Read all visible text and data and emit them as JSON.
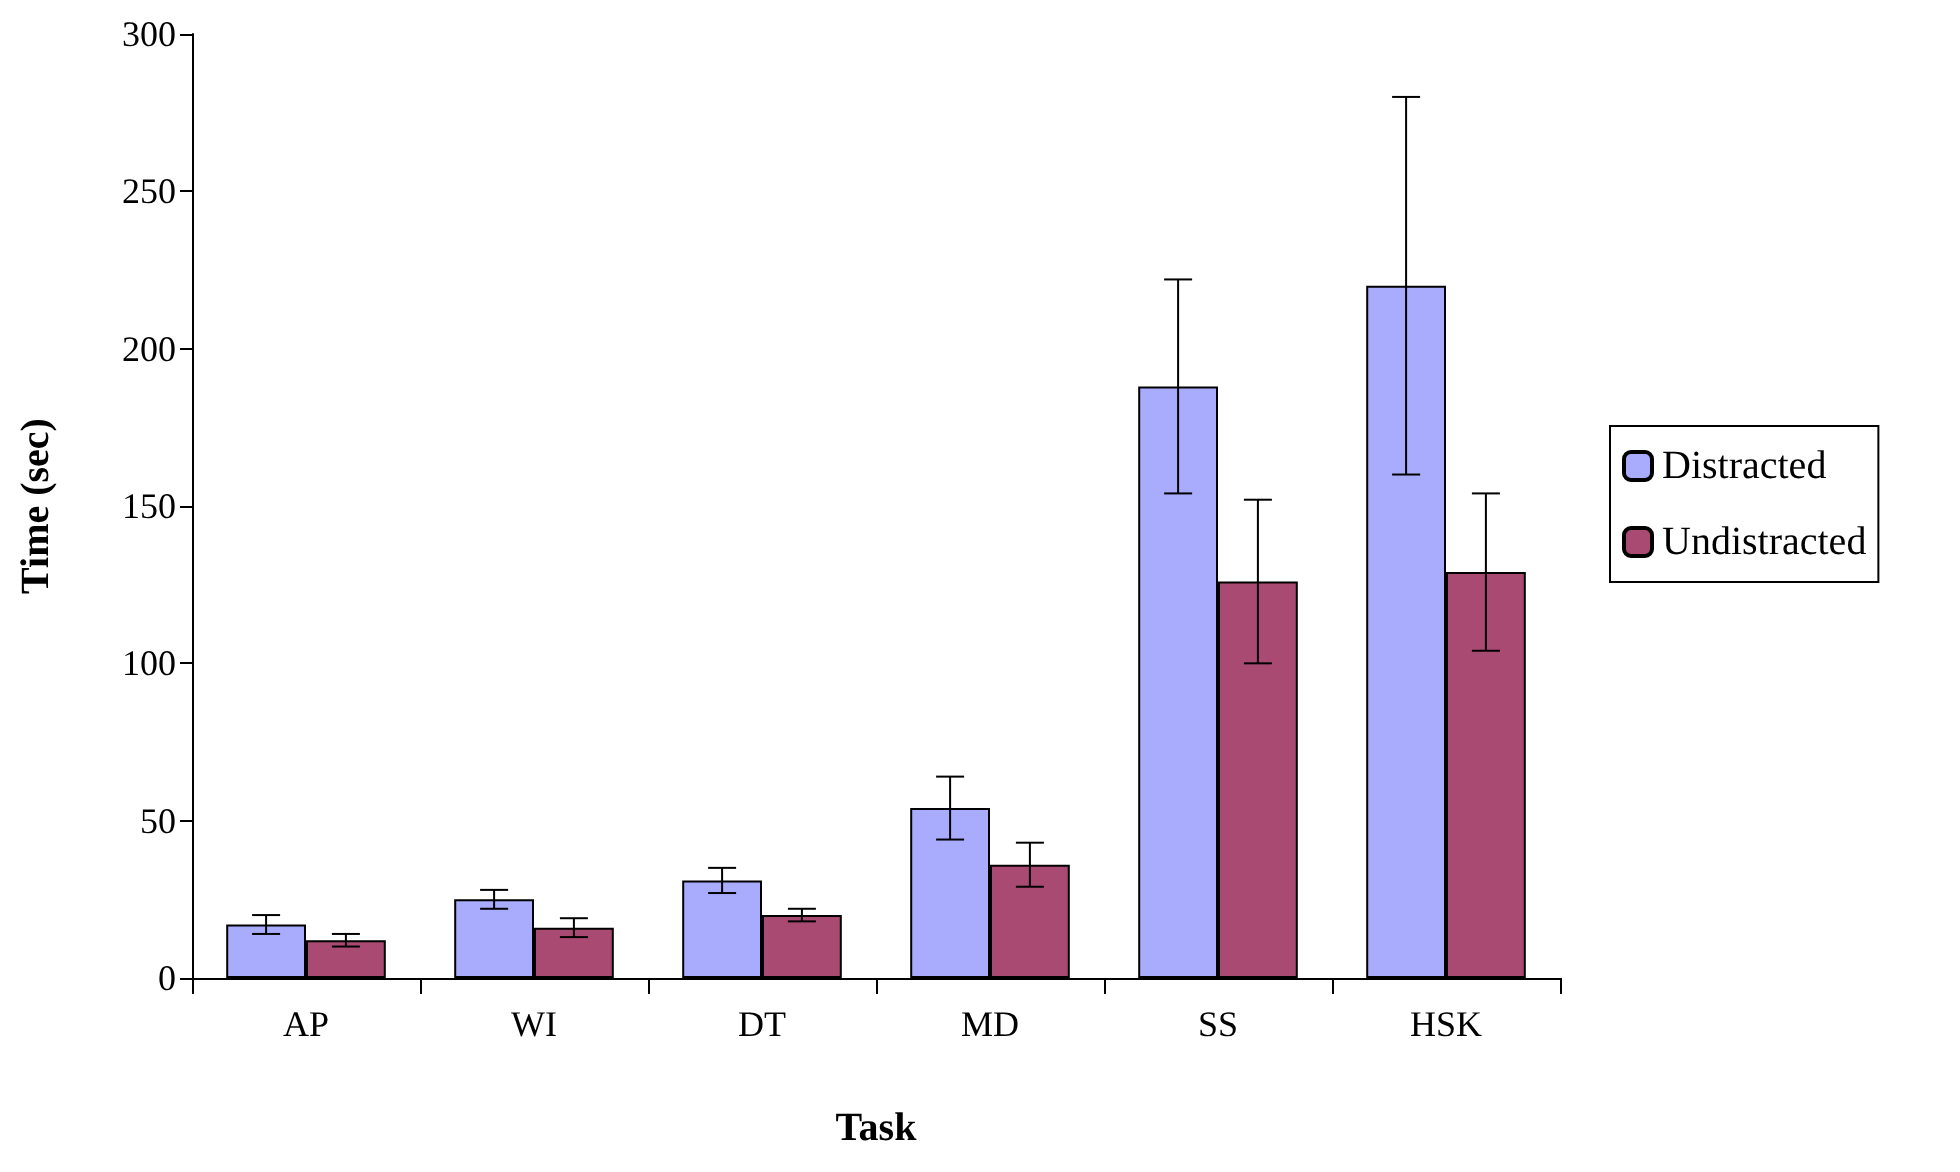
{
  "chart_data": {
    "type": "bar",
    "xlabel": "Task",
    "ylabel": "Time (sec)",
    "categories": [
      "AP",
      "WI",
      "DT",
      "MD",
      "SS",
      "HSK"
    ],
    "series": [
      {
        "name": "Distracted",
        "color": "#a9abfd",
        "values": [
          17,
          25,
          31,
          54,
          188,
          220
        ],
        "errors": [
          3,
          3,
          4,
          10,
          34,
          60
        ]
      },
      {
        "name": "Undistracted",
        "color": "#a94a73",
        "values": [
          12,
          16,
          20,
          36,
          126,
          129
        ],
        "errors": [
          2,
          3,
          2,
          7,
          26,
          25
        ]
      }
    ],
    "ylim": [
      0,
      300
    ],
    "yticks": [
      0,
      50,
      100,
      150,
      200,
      250,
      300
    ],
    "grid": false,
    "legend": "right"
  }
}
